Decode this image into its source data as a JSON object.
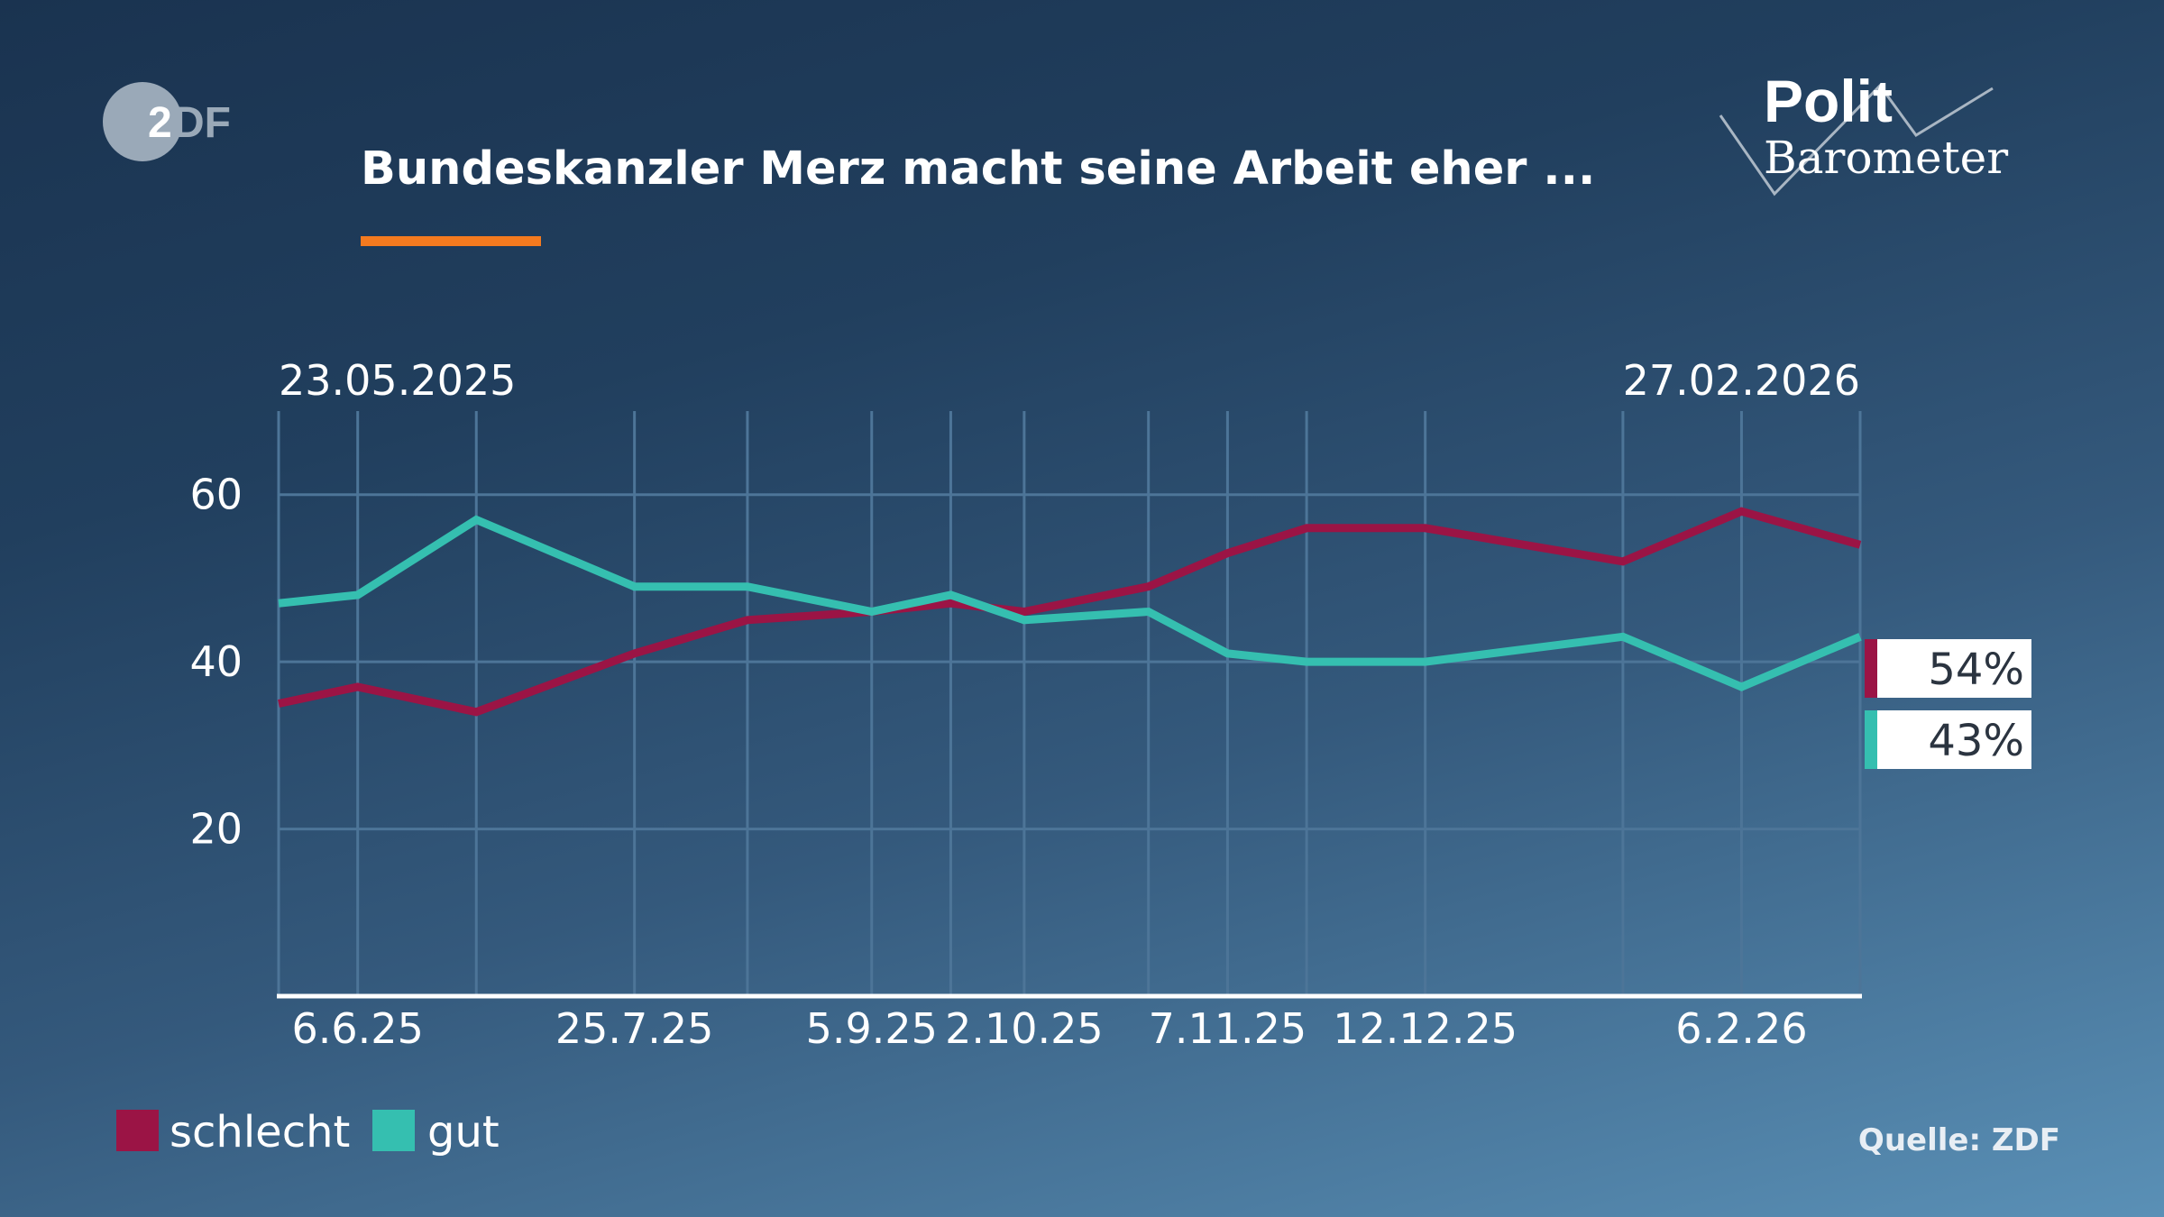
{
  "header": {
    "title": "Bundeskanzler Merz macht seine Arbeit eher ...",
    "accent_color": "#f47a1f",
    "channel_logo": "ZDF",
    "program_logo": "Polit Barometer"
  },
  "chart_data": {
    "type": "line",
    "title": "Bundeskanzler Merz macht seine Arbeit eher ...",
    "date_range_start": "23.05.2025",
    "date_range_end": "27.02.2026",
    "x": [
      "23.5.25",
      "6.6.25",
      "27.6.25",
      "25.7.25",
      "14.8.25",
      "5.9.25",
      "19.9.25",
      "2.10.25",
      "24.10.25",
      "7.11.25",
      "21.11.25",
      "12.12.25",
      "16.1.26",
      "6.2.26",
      "27.2.26"
    ],
    "x_tick_labels": [
      "6.6.25",
      "25.7.25",
      "5.9.25",
      "2.10.25",
      "7.11.25",
      "12.12.25",
      "6.2.26"
    ],
    "y_ticks": [
      20,
      40,
      60
    ],
    "ylim": [
      0,
      70
    ],
    "grid": true,
    "legend_position": "bottom-left",
    "series": [
      {
        "name": "schlecht",
        "color": "#9b1445",
        "values": [
          35,
          37,
          34,
          41,
          45,
          46,
          47,
          46,
          49,
          53,
          56,
          56,
          52,
          58,
          54
        ],
        "last_label": "54%"
      },
      {
        "name": "gut",
        "color": "#35bfb0",
        "values": [
          47,
          48,
          57,
          49,
          49,
          46,
          48,
          45,
          46,
          41,
          40,
          40,
          43,
          37,
          43
        ],
        "last_label": "43%"
      }
    ]
  },
  "footer": {
    "source": "Quelle: ZDF"
  }
}
